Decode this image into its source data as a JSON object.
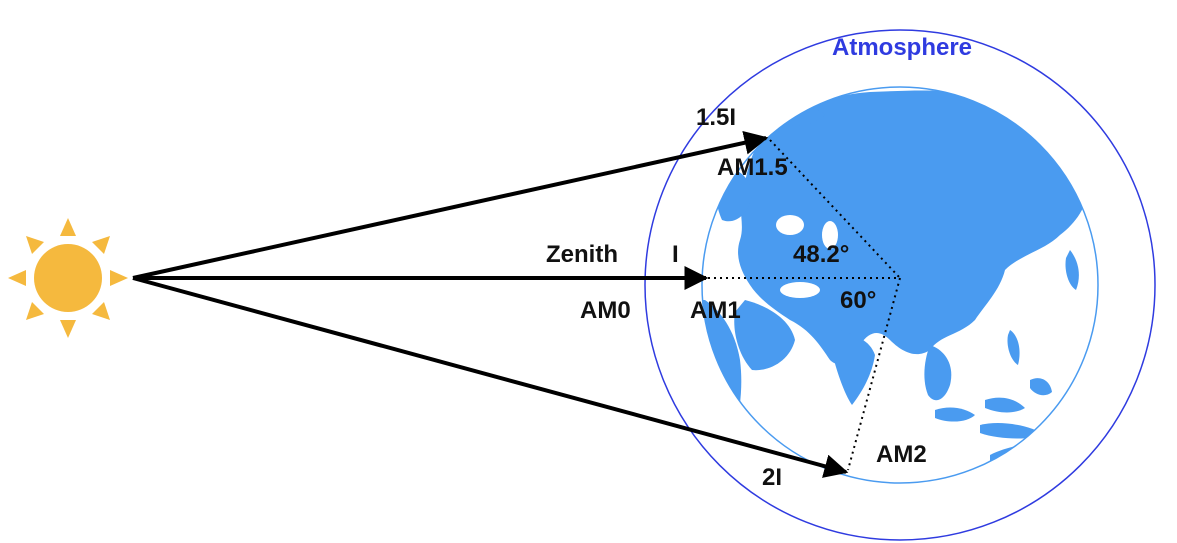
{
  "diagram": {
    "atmosphere_label": "Atmosphere",
    "labels": {
      "zenith": "Zenith",
      "am0": "AM0",
      "am1": "AM1",
      "am1_5": "AM1.5",
      "am2": "AM2",
      "intensity_1": "I",
      "intensity_1_5": "1.5I",
      "intensity_2": "2I",
      "angle_48": "48.2°",
      "angle_60": "60°"
    }
  },
  "colors": {
    "sun": "#F5B93E",
    "earth_land": "#4A9BF0",
    "atmosphere_line": "#2F3BE0",
    "inner_circle": "#4A9BF0",
    "arrow": "#000000"
  },
  "icons": {
    "sun": "sun-icon",
    "earth": "earth-globe-icon"
  }
}
